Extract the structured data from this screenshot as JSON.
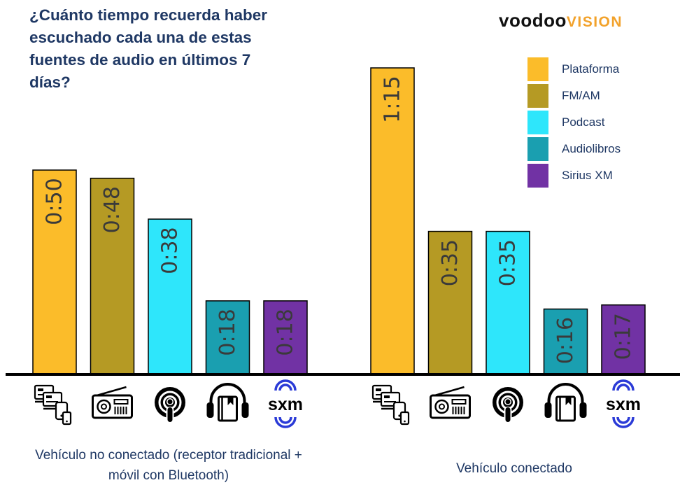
{
  "title": "¿Cuánto tiempo recuerda haber escuchado cada una de estas fuentes de audio en últimos 7 días?",
  "logo": {
    "part1": "voodoo",
    "part2": "VISION"
  },
  "legend": [
    {
      "label": "Plataforma",
      "color": "#fbbc2a"
    },
    {
      "label": "FM/AM",
      "color": "#b59a24"
    },
    {
      "label": "Podcast",
      "color": "#2ee6fb"
    },
    {
      "label": "Audiolibros",
      "color": "#1a9fb0"
    },
    {
      "label": "Sirius XM",
      "color": "#7132a4"
    }
  ],
  "chart_data": {
    "type": "bar",
    "unit": "h:mm",
    "categories": [
      "Vehículo no conectado (receptor tradicional + móvil con Bluetooth)",
      "Vehículo conectado"
    ],
    "series": [
      {
        "name": "Plataforma",
        "values": [
          50,
          75
        ],
        "labels": [
          "0:50",
          "1:15"
        ],
        "color": "#fbbc2a",
        "icon": "devices-icon"
      },
      {
        "name": "FM/AM",
        "values": [
          48,
          35
        ],
        "labels": [
          "0:48",
          "0:35"
        ],
        "color": "#b59a24",
        "icon": "radio-icon"
      },
      {
        "name": "Podcast",
        "values": [
          38,
          35
        ],
        "labels": [
          "0:38",
          "0:35"
        ],
        "color": "#2ee6fb",
        "icon": "podcast-icon"
      },
      {
        "name": "Audiolibros",
        "values": [
          18,
          16
        ],
        "labels": [
          "0:18",
          "0:16"
        ],
        "color": "#1a9fb0",
        "icon": "audiobook-icon"
      },
      {
        "name": "Sirius XM",
        "values": [
          18,
          17
        ],
        "labels": [
          "0:18",
          "0:17"
        ],
        "color": "#7132a4",
        "icon": "sxm-logo-icon"
      }
    ],
    "ylim": [
      0,
      80
    ],
    "grid": false,
    "legend_position": "top-right"
  },
  "groups": [
    {
      "label": "Vehículo no conectado (receptor tradicional + móvil con Bluetooth)"
    },
    {
      "label": "Vehículo conectado"
    }
  ]
}
